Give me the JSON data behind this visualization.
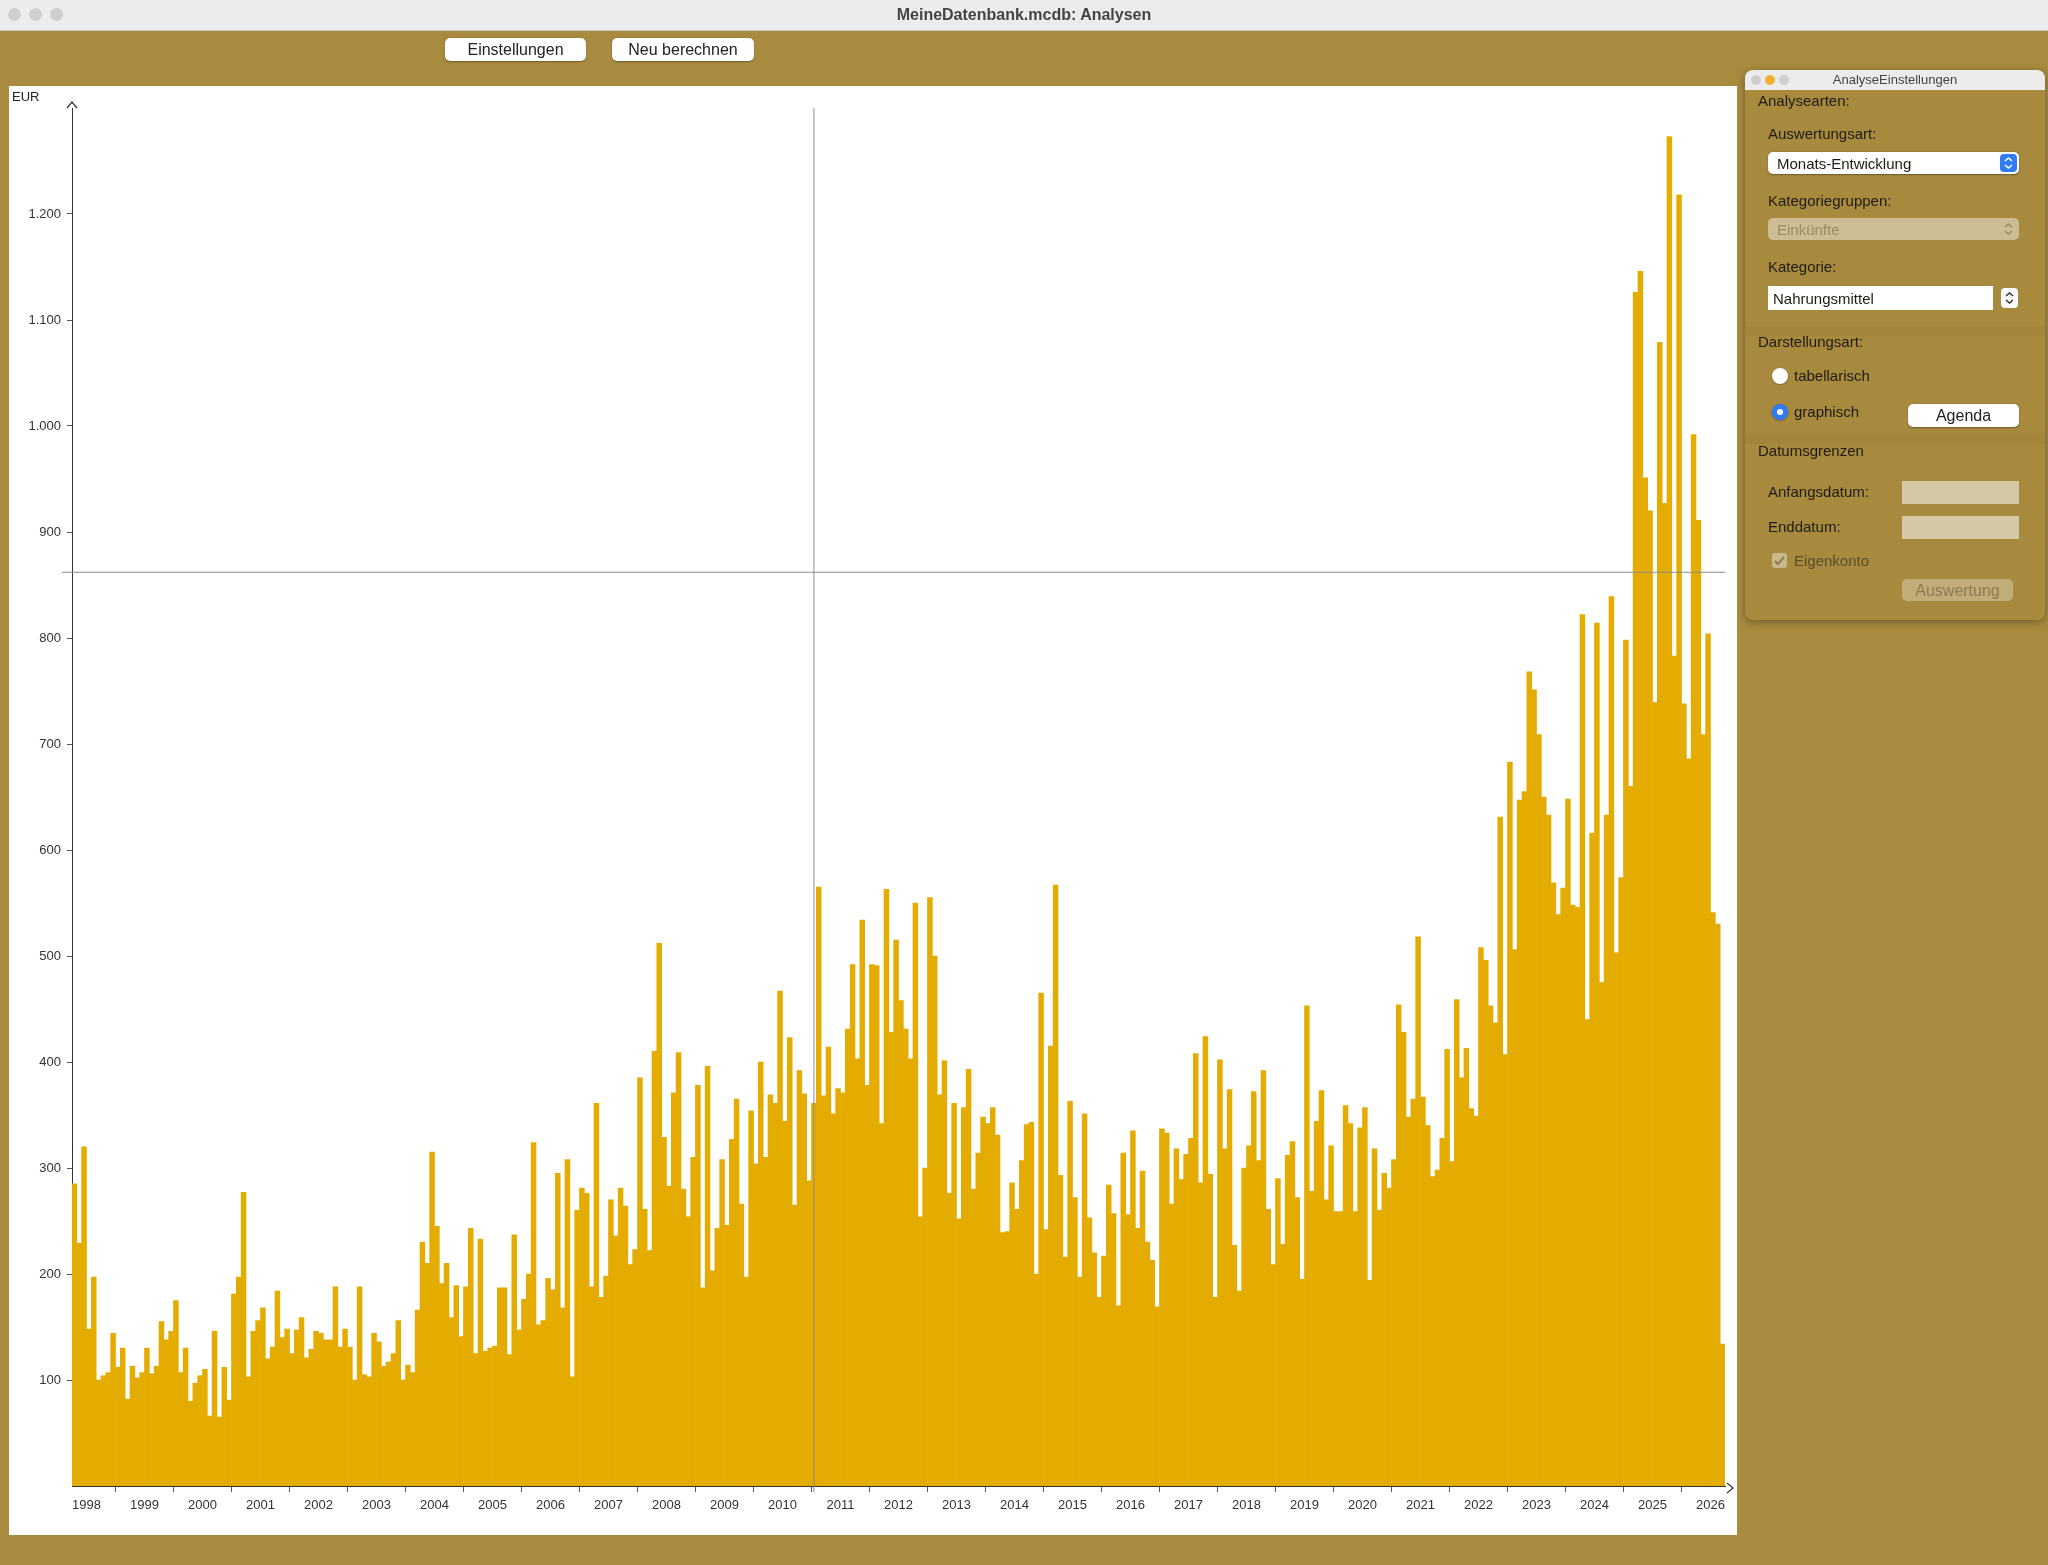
{
  "chart_data": {
    "type": "bar",
    "title": "MeineDatenbank.mcdb: Analysen",
    "ylabel": "EUR",
    "x": [
      "1997-10",
      "1997-11",
      "1997-12",
      "1998-01",
      "1998-02",
      "1998-03",
      "1998-04",
      "1998-05",
      "1998-06",
      "1998-07",
      "1998-08",
      "1998-09",
      "1998-10",
      "1998-11",
      "1998-12",
      "1999-01",
      "1999-02",
      "1999-03",
      "1999-04",
      "1999-05",
      "1999-06",
      "1999-07",
      "1999-08",
      "1999-09",
      "1999-10",
      "1999-11",
      "1999-12",
      "2000-01",
      "2000-02",
      "2000-03",
      "2000-04",
      "2000-05",
      "2000-06",
      "2000-07",
      "2000-08",
      "2000-09",
      "2000-10",
      "2000-11",
      "2000-12",
      "2001-01",
      "2001-02",
      "2001-03",
      "2001-04",
      "2001-05",
      "2001-06",
      "2001-07",
      "2001-08",
      "2001-09",
      "2001-10",
      "2001-11",
      "2001-12",
      "2002-01",
      "2002-02",
      "2002-03",
      "2002-04",
      "2002-05",
      "2002-06",
      "2002-07",
      "2002-08",
      "2002-09",
      "2002-10",
      "2002-11",
      "2002-12",
      "2003-01",
      "2003-02",
      "2003-03",
      "2003-04",
      "2003-05",
      "2003-06",
      "2003-07",
      "2003-08",
      "2003-09",
      "2003-10",
      "2003-11",
      "2003-12",
      "2004-01",
      "2004-02",
      "2004-03",
      "2004-04",
      "2004-05",
      "2004-06",
      "2004-07",
      "2004-08",
      "2004-09",
      "2004-10",
      "2004-11",
      "2004-12",
      "2005-01",
      "2005-02",
      "2005-03",
      "2005-04",
      "2005-05",
      "2005-06",
      "2005-07",
      "2005-08",
      "2005-09",
      "2005-10",
      "2005-11",
      "2005-12",
      "2006-01",
      "2006-02",
      "2006-03",
      "2006-04",
      "2006-05",
      "2006-06",
      "2006-07",
      "2006-08",
      "2006-09",
      "2006-10",
      "2006-11",
      "2006-12",
      "2007-01",
      "2007-02",
      "2007-03",
      "2007-04",
      "2007-05",
      "2007-06",
      "2007-07",
      "2007-08",
      "2007-09",
      "2007-10",
      "2007-11",
      "2007-12",
      "2008-01",
      "2008-02",
      "2008-03",
      "2008-04",
      "2008-05",
      "2008-06",
      "2008-07",
      "2008-08",
      "2008-09",
      "2008-10",
      "2008-11",
      "2008-12",
      "2009-01",
      "2009-02",
      "2009-03",
      "2009-04",
      "2009-05",
      "2009-06",
      "2009-07",
      "2009-08",
      "2009-09",
      "2009-10",
      "2009-11",
      "2009-12",
      "2010-01",
      "2010-02",
      "2010-03",
      "2010-04",
      "2010-05",
      "2010-06",
      "2010-07",
      "2010-08",
      "2010-09",
      "2010-10",
      "2010-11",
      "2010-12",
      "2011-01",
      "2011-02",
      "2011-03",
      "2011-04",
      "2011-05",
      "2011-06",
      "2011-07",
      "2011-08",
      "2011-09",
      "2011-10",
      "2011-11",
      "2011-12",
      "2012-01",
      "2012-02",
      "2012-03",
      "2012-04",
      "2012-05",
      "2012-06",
      "2012-07",
      "2012-08",
      "2012-09",
      "2012-10",
      "2012-11",
      "2012-12",
      "2013-01",
      "2013-02",
      "2013-03",
      "2013-04",
      "2013-05",
      "2013-06",
      "2013-07",
      "2013-08",
      "2013-09",
      "2013-10",
      "2013-11",
      "2013-12",
      "2014-01",
      "2014-02",
      "2014-03",
      "2014-04",
      "2014-05",
      "2014-06",
      "2014-07",
      "2014-08",
      "2014-09",
      "2014-10",
      "2014-11",
      "2014-12",
      "2015-01",
      "2015-02",
      "2015-03",
      "2015-04",
      "2015-05",
      "2015-06",
      "2015-07",
      "2015-08",
      "2015-09",
      "2015-10",
      "2015-11",
      "2015-12",
      "2016-01",
      "2016-02",
      "2016-03",
      "2016-04",
      "2016-05",
      "2016-06",
      "2016-07",
      "2016-08",
      "2016-09",
      "2016-10",
      "2016-11",
      "2016-12",
      "2017-01",
      "2017-02",
      "2017-03",
      "2017-04",
      "2017-05",
      "2017-06",
      "2017-07",
      "2017-08",
      "2017-09",
      "2017-10",
      "2017-11",
      "2017-12",
      "2018-01",
      "2018-02",
      "2018-03",
      "2018-04",
      "2018-05",
      "2018-06",
      "2018-07",
      "2018-08",
      "2018-09",
      "2018-10",
      "2018-11",
      "2018-12",
      "2019-01",
      "2019-02",
      "2019-03",
      "2019-04",
      "2019-05",
      "2019-06",
      "2019-07",
      "2019-08",
      "2019-09",
      "2019-10",
      "2019-11",
      "2019-12",
      "2020-01",
      "2020-02",
      "2020-03",
      "2020-04",
      "2020-05",
      "2020-06",
      "2020-07",
      "2020-08",
      "2020-09",
      "2020-10",
      "2020-11",
      "2020-12",
      "2021-01",
      "2021-02",
      "2021-03",
      "2021-04",
      "2021-05",
      "2021-06",
      "2021-07",
      "2021-08",
      "2021-09",
      "2021-10",
      "2021-11",
      "2021-12",
      "2022-01",
      "2022-02",
      "2022-03",
      "2022-04",
      "2022-05",
      "2022-06",
      "2022-07",
      "2022-08",
      "2022-09",
      "2022-10",
      "2022-11",
      "2022-12",
      "2023-01",
      "2023-02",
      "2023-03",
      "2023-04",
      "2023-05",
      "2023-06",
      "2023-07",
      "2023-08",
      "2023-09",
      "2023-10",
      "2023-11",
      "2023-12",
      "2024-01",
      "2024-02",
      "2024-03",
      "2024-04",
      "2024-05",
      "2024-06",
      "2024-07",
      "2024-08",
      "2024-09",
      "2024-10",
      "2024-11",
      "2024-12",
      "2025-01",
      "2025-02",
      "2025-03",
      "2025-04",
      "2025-05",
      "2025-06",
      "2025-07",
      "2025-08",
      "2025-09",
      "2025-10",
      "2025-11",
      "2025-12",
      "2026-01",
      "2026-02",
      "2026-03"
    ],
    "values": [
      285,
      229,
      320,
      148,
      197,
      100,
      104,
      107,
      144,
      112,
      130,
      82,
      113,
      102,
      107,
      130,
      106,
      113,
      155,
      138,
      146,
      175,
      107,
      130,
      80,
      97,
      104,
      110,
      66,
      146,
      65,
      112,
      81,
      181,
      197,
      277,
      103,
      146,
      156,
      168,
      120,
      131,
      184,
      140,
      148,
      125,
      147,
      159,
      121,
      129,
      146,
      144,
      138,
      138,
      188,
      131,
      148,
      131,
      100,
      188,
      105,
      103,
      144,
      136,
      113,
      117,
      125,
      156,
      100,
      114,
      107,
      166,
      230,
      210,
      315,
      245,
      191,
      210,
      159,
      189,
      141,
      188,
      243,
      125,
      233,
      127,
      130,
      132,
      187,
      187,
      124,
      237,
      147,
      176,
      200,
      324,
      152,
      156,
      196,
      185,
      295,
      168,
      308,
      103,
      260,
      281,
      276,
      188,
      361,
      178,
      198,
      270,
      236,
      281,
      264,
      209,
      223,
      385,
      261,
      222,
      410,
      512,
      329,
      283,
      371,
      409,
      280,
      254,
      310,
      378,
      187,
      396,
      203,
      243,
      308,
      246,
      327,
      365,
      266,
      197,
      354,
      304,
      400,
      310,
      369,
      361,
      467,
      344,
      423,
      265,
      392,
      370,
      288,
      361,
      565,
      368,
      414,
      351,
      375,
      371,
      431,
      492,
      403,
      534,
      378,
      492,
      491,
      342,
      563,
      428,
      515,
      458,
      431,
      403,
      550,
      254,
      300,
      555,
      500,
      369,
      401,
      276,
      361,
      252,
      357,
      393,
      280,
      314,
      348,
      342,
      357,
      331,
      239,
      240,
      286,
      261,
      307,
      341,
      343,
      200,
      465,
      242,
      415,
      567,
      293,
      216,
      363,
      272,
      197,
      351,
      253,
      220,
      178,
      217,
      284,
      257,
      170,
      314,
      256,
      335,
      243,
      297,
      230,
      213,
      169,
      337,
      333,
      266,
      318,
      289,
      313,
      328,
      408,
      286,
      424,
      294,
      178,
      402,
      318,
      374,
      227,
      184,
      300,
      321,
      372,
      307,
      392,
      261,
      209,
      290,
      228,
      312,
      325,
      272,
      195,
      453,
      278,
      344,
      373,
      270,
      321,
      259,
      259,
      359,
      342,
      259,
      338,
      357,
      194,
      318,
      260,
      295,
      281,
      308,
      454,
      428,
      348,
      365,
      518,
      367,
      340,
      292,
      298,
      328,
      412,
      306,
      459,
      385,
      413,
      356,
      349,
      508,
      496,
      453,
      437,
      631,
      407,
      683,
      506,
      647,
      655,
      768,
      751,
      709,
      650,
      633,
      569,
      539,
      564,
      648,
      548,
      546,
      822,
      440,
      616,
      814,
      475,
      633,
      839,
      503,
      574,
      798,
      660,
      1126,
      1146,
      951,
      920,
      739,
      1079,
      927,
      1273,
      783,
      1218,
      738,
      686,
      992,
      911,
      709,
      804,
      541,
      530,
      134
    ],
    "color": "#e4ac00",
    "xlim": [
      "1997-10",
      "2026-04"
    ],
    "xticks": [
      "1998",
      "1999",
      "2000",
      "2001",
      "2002",
      "2003",
      "2004",
      "2005",
      "2006",
      "2007",
      "2008",
      "2009",
      "2010",
      "2011",
      "2012",
      "2013",
      "2014",
      "2015",
      "2016",
      "2017",
      "2018",
      "2019",
      "2020",
      "2021",
      "2022",
      "2023",
      "2024",
      "2025",
      "2026"
    ],
    "ylim": [
      0,
      1300
    ],
    "yticks": [
      100,
      200,
      300,
      400,
      500,
      600,
      700,
      800,
      900,
      {
        "value": 1000,
        "label": "1.000"
      },
      {
        "value": 1100,
        "label": "1.100"
      },
      {
        "value": 1200,
        "label": "1.200"
      }
    ],
    "grid": false,
    "legend": false,
    "ref_lines": [
      {
        "axis": "y",
        "value": 862,
        "color": "#8c8c8c"
      },
      {
        "axis": "x",
        "value": "2010-07",
        "color": "#8c8c8c"
      }
    ],
    "annotations": [
      "Einstellungen",
      "Neu berechnen",
      "AnalyseEinstellungen",
      "Analysearten:",
      "Auswertungsart:",
      "Monats-Entwicklung",
      "Kategoriegruppen:",
      "Einkünfte",
      "Kategorie:",
      "Nahrungsmittel",
      "Darstellungsart:",
      "tabellarisch",
      "graphisch",
      "Agenda",
      "Datumsgrenzen",
      "Anfangsdatum:",
      "Enddatum:",
      "Eigenkonto",
      "Auswertung"
    ]
  }
}
